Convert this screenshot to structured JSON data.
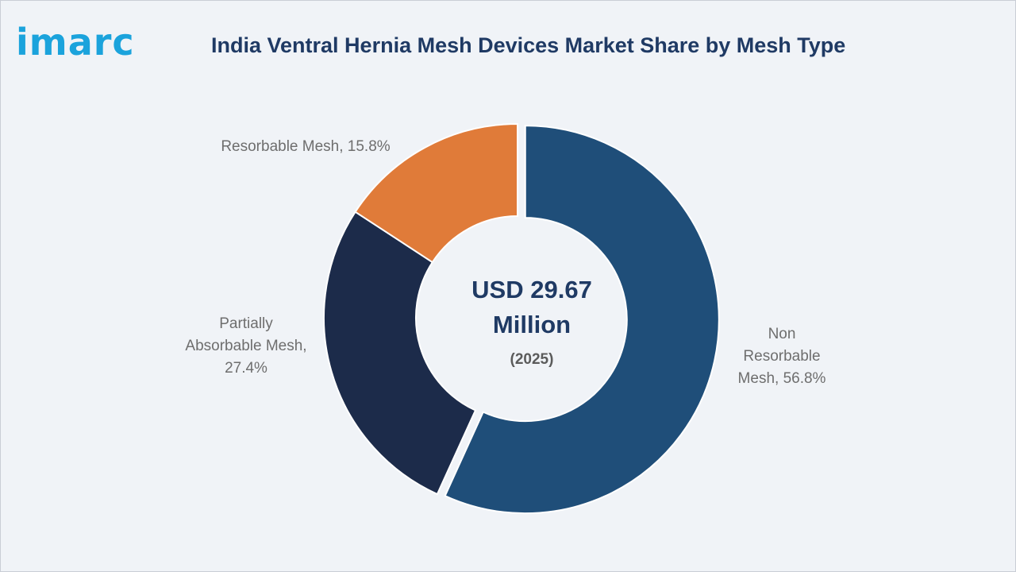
{
  "logo": {
    "text": "imarc"
  },
  "chart_data": {
    "type": "pie",
    "title": "India Ventral Hernia Mesh Devices Market Share by Mesh Type",
    "variant": "donut",
    "categories": [
      "Non Resorbable Mesh",
      "Partially Absorbable Mesh",
      "Resorbable Mesh"
    ],
    "values": [
      56.8,
      27.4,
      15.8
    ],
    "unit": "%",
    "colors": [
      "#1f4e79",
      "#1c2b4a",
      "#e07b39"
    ],
    "labels": {
      "non_resorbable": {
        "line1": "Non",
        "line2": "Resorbable",
        "line3": "Mesh, 56.8%"
      },
      "partially_absorbable": {
        "line1": "Partially",
        "line2": "Absorbable Mesh,",
        "line3": "27.4%"
      },
      "resorbable": {
        "line1": "Resorbable Mesh, 15.8%"
      }
    },
    "center": {
      "value_line1": "USD 29.67",
      "value_line2": "Million",
      "year": "(2025)"
    }
  }
}
